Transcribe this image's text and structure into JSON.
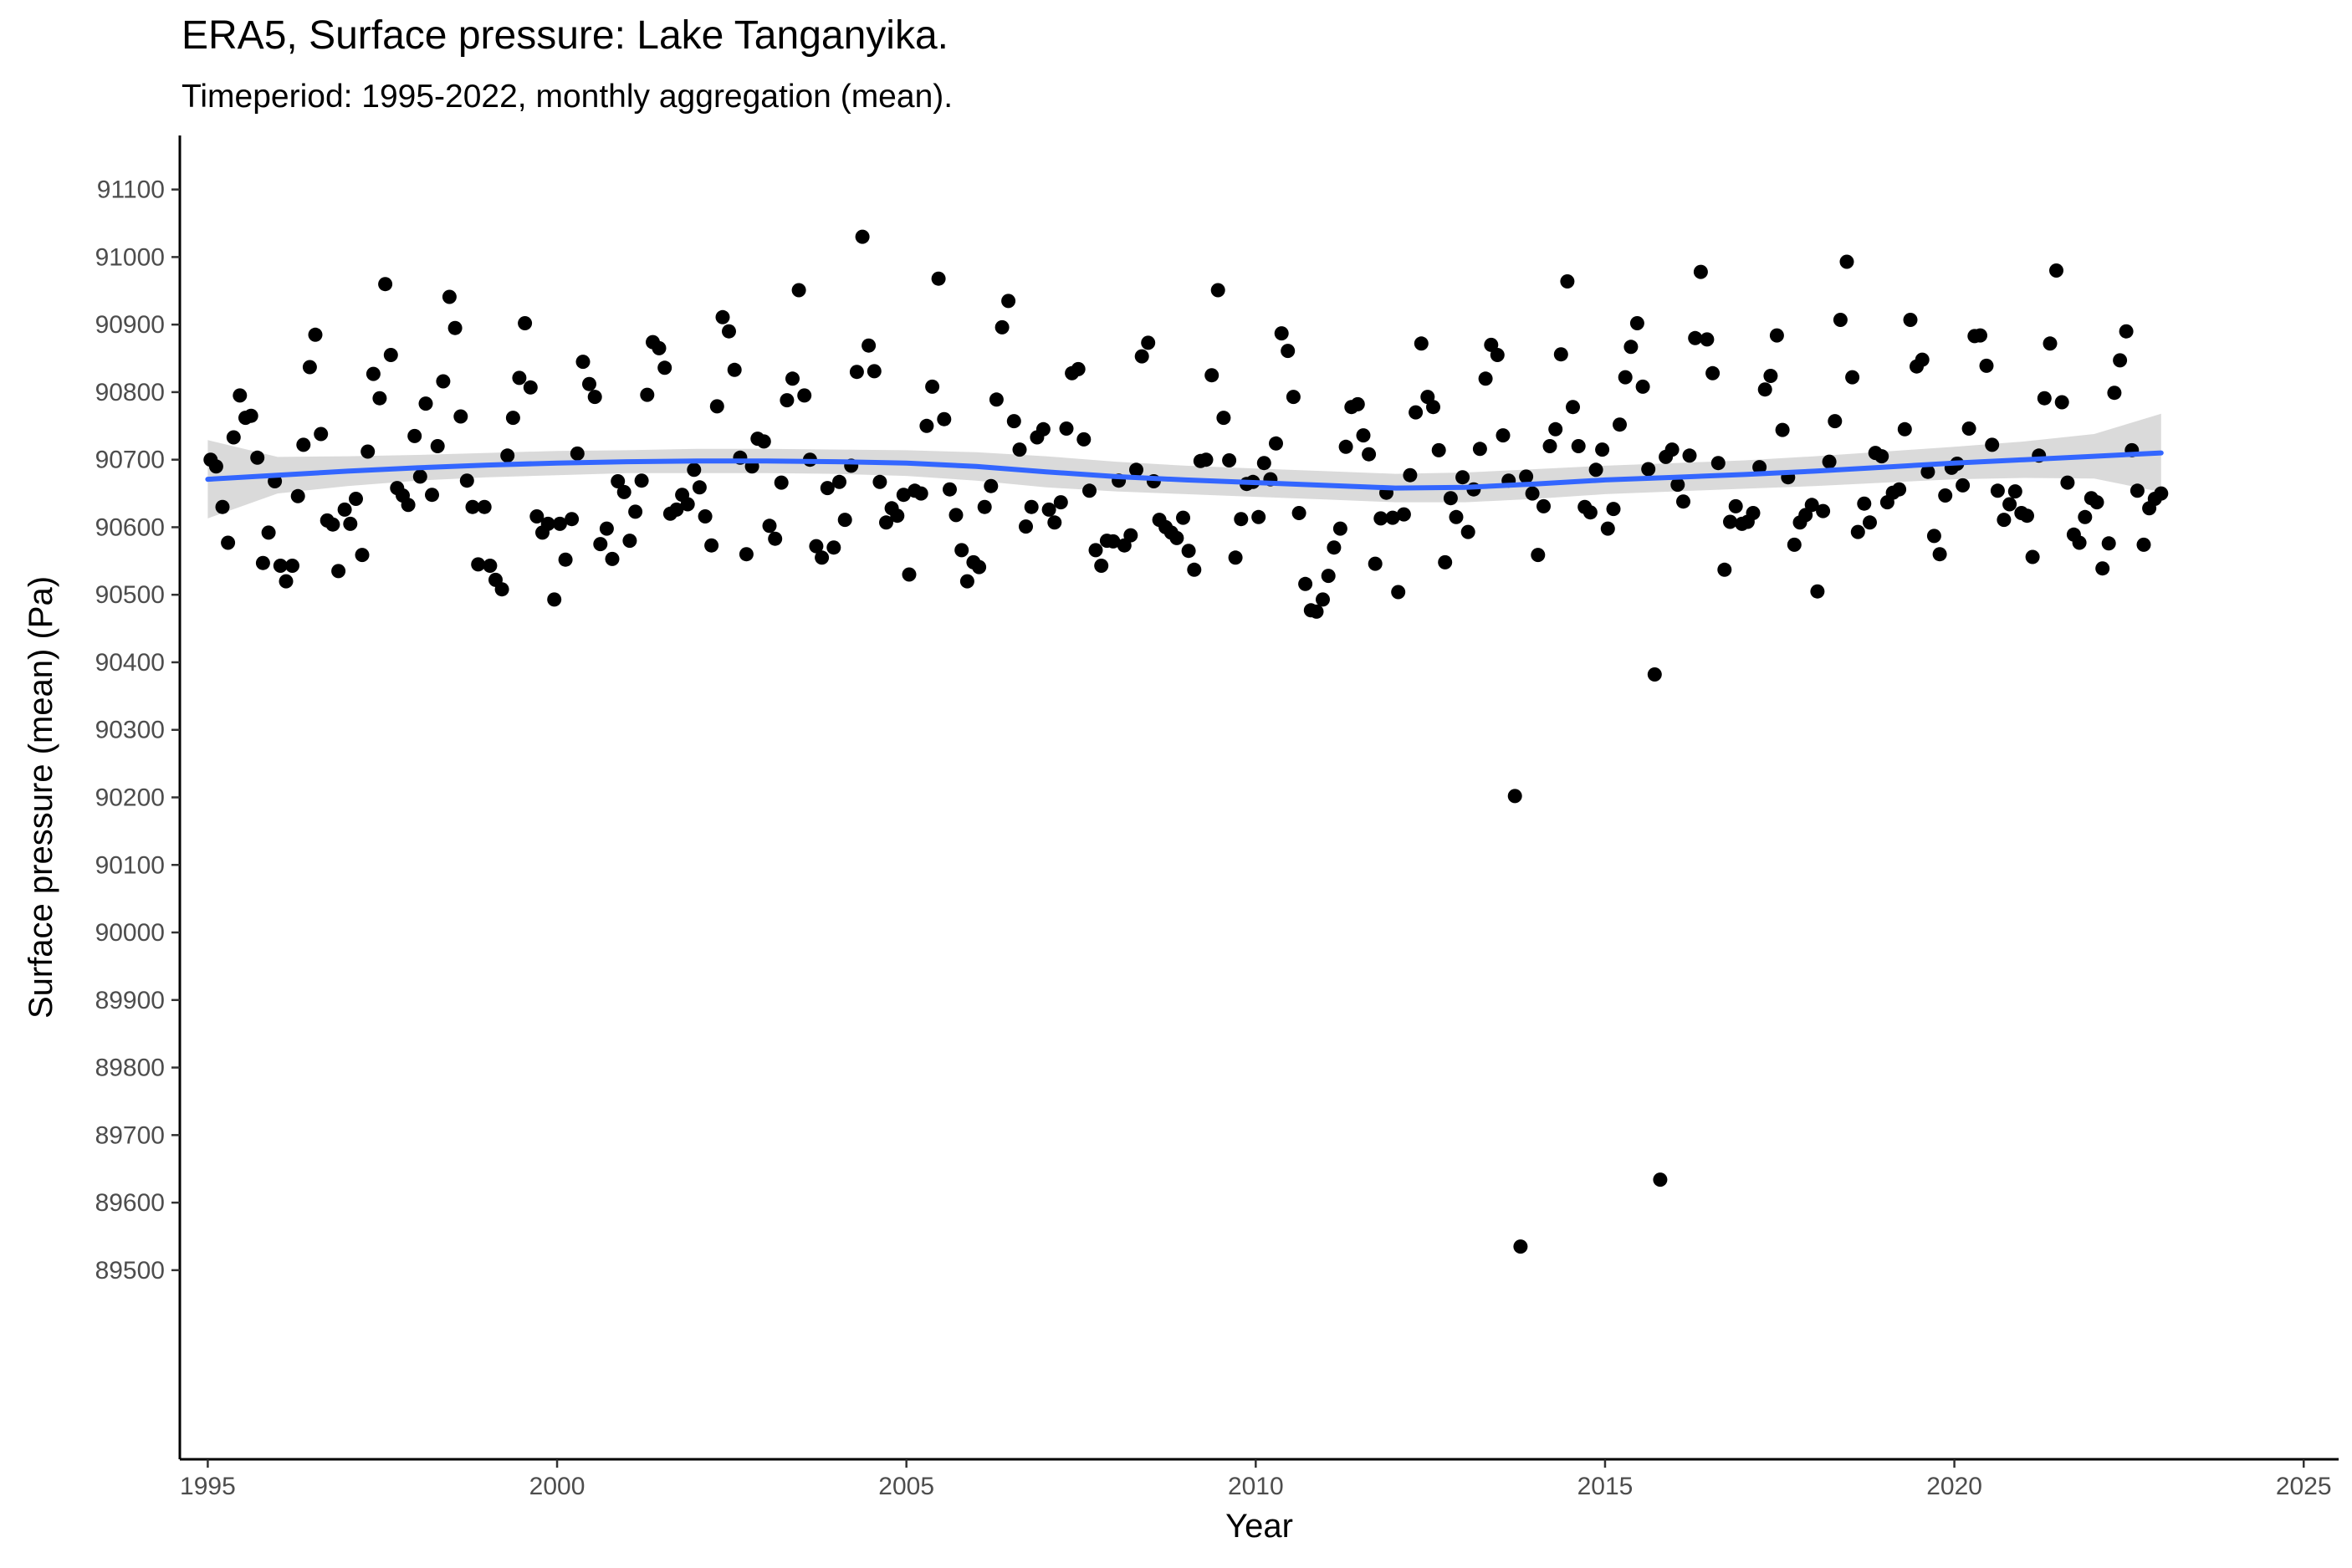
{
  "chart_data": {
    "type": "scatter",
    "title": "ERA5, Surface pressure: Lake Tanganyika.",
    "subtitle": "Timeperiod: 1995-2022, monthly aggregation (mean).",
    "xlabel": "Year",
    "ylabel": "Surface pressure (mean) (Pa)",
    "xlim": [
      1994.6,
      2025.5
    ],
    "ylim": [
      89220,
      91180
    ],
    "x_ticks": [
      1995,
      2000,
      2005,
      2010,
      2015,
      2020,
      2025
    ],
    "y_ticks": [
      89500,
      89600,
      89700,
      89800,
      89900,
      90000,
      90100,
      90200,
      90300,
      90400,
      90500,
      90600,
      90700,
      90800,
      90900,
      91000,
      91100
    ],
    "grid": false,
    "legend": "none",
    "colors": {
      "points": "#000000",
      "smooth_line": "#3366FF",
      "confidence_band": "#d3d3d3"
    },
    "series": [
      {
        "kind": "points",
        "x": [
          1995.04,
          1995.12,
          1995.21,
          1995.29,
          1995.37,
          1995.46,
          1995.54,
          1995.62,
          1995.71,
          1995.79,
          1995.87,
          1995.96,
          1996.04,
          1996.12,
          1996.21,
          1996.29,
          1996.37,
          1996.46,
          1996.54,
          1996.62,
          1996.71,
          1996.79,
          1996.87,
          1996.96,
          1997.04,
          1997.12,
          1997.21,
          1997.29,
          1997.37,
          1997.46,
          1997.54,
          1997.62,
          1997.71,
          1997.79,
          1997.87,
          1997.96,
          1998.04,
          1998.12,
          1998.21,
          1998.29,
          1998.37,
          1998.46,
          1998.54,
          1998.62,
          1998.71,
          1998.79,
          1998.87,
          1998.96,
          1999.04,
          1999.12,
          1999.21,
          1999.29,
          1999.37,
          1999.46,
          1999.54,
          1999.62,
          1999.71,
          1999.79,
          1999.87,
          1999.96,
          2000.04,
          2000.12,
          2000.21,
          2000.29,
          2000.37,
          2000.46,
          2000.54,
          2000.62,
          2000.71,
          2000.79,
          2000.87,
          2000.96,
          2001.04,
          2001.12,
          2001.21,
          2001.29,
          2001.37,
          2001.46,
          2001.54,
          2001.62,
          2001.71,
          2001.79,
          2001.87,
          2001.96,
          2002.04,
          2002.12,
          2002.21,
          2002.29,
          2002.37,
          2002.46,
          2002.54,
          2002.62,
          2002.71,
          2002.79,
          2002.87,
          2002.96,
          2003.04,
          2003.12,
          2003.21,
          2003.29,
          2003.37,
          2003.46,
          2003.54,
          2003.62,
          2003.71,
          2003.79,
          2003.87,
          2003.96,
          2004.04,
          2004.12,
          2004.21,
          2004.29,
          2004.37,
          2004.46,
          2004.54,
          2004.62,
          2004.71,
          2004.79,
          2004.87,
          2004.96,
          2005.04,
          2005.12,
          2005.21,
          2005.29,
          2005.37,
          2005.46,
          2005.54,
          2005.62,
          2005.71,
          2005.79,
          2005.87,
          2005.96,
          2006.04,
          2006.12,
          2006.21,
          2006.29,
          2006.37,
          2006.46,
          2006.54,
          2006.62,
          2006.71,
          2006.79,
          2006.87,
          2006.96,
          2007.04,
          2007.12,
          2007.21,
          2007.29,
          2007.37,
          2007.46,
          2007.54,
          2007.62,
          2007.71,
          2007.79,
          2007.87,
          2007.96,
          2008.04,
          2008.12,
          2008.21,
          2008.29,
          2008.37,
          2008.46,
          2008.54,
          2008.62,
          2008.71,
          2008.79,
          2008.87,
          2008.96,
          2009.04,
          2009.12,
          2009.21,
          2009.29,
          2009.37,
          2009.46,
          2009.54,
          2009.62,
          2009.71,
          2009.79,
          2009.87,
          2009.96,
          2010.04,
          2010.12,
          2010.21,
          2010.29,
          2010.37,
          2010.46,
          2010.54,
          2010.62,
          2010.71,
          2010.79,
          2010.87,
          2010.96,
          2011.04,
          2011.12,
          2011.21,
          2011.29,
          2011.37,
          2011.46,
          2011.54,
          2011.62,
          2011.71,
          2011.79,
          2011.87,
          2011.96,
          2012.04,
          2012.12,
          2012.21,
          2012.29,
          2012.37,
          2012.46,
          2012.54,
          2012.62,
          2012.71,
          2012.79,
          2012.87,
          2012.96,
          2013.04,
          2013.12,
          2013.21,
          2013.29,
          2013.37,
          2013.46,
          2013.54,
          2013.62,
          2013.71,
          2013.79,
          2013.87,
          2013.96,
          2014.04,
          2014.12,
          2014.21,
          2014.29,
          2014.37,
          2014.46,
          2014.54,
          2014.62,
          2014.71,
          2014.79,
          2014.87,
          2014.96,
          2015.04,
          2015.12,
          2015.21,
          2015.29,
          2015.37,
          2015.46,
          2015.54,
          2015.62,
          2015.71,
          2015.79,
          2015.87,
          2015.96,
          2016.04,
          2016.12,
          2016.21,
          2016.29,
          2016.37,
          2016.46,
          2016.54,
          2016.62,
          2016.71,
          2016.79,
          2016.87,
          2016.96,
          2017.04,
          2017.12,
          2017.21,
          2017.29,
          2017.37,
          2017.46,
          2017.54,
          2017.62,
          2017.71,
          2017.79,
          2017.87,
          2017.96,
          2018.04,
          2018.12,
          2018.21,
          2018.29,
          2018.37,
          2018.46,
          2018.54,
          2018.62,
          2018.71,
          2018.79,
          2018.87,
          2018.96,
          2019.04,
          2019.12,
          2019.21,
          2019.29,
          2019.37,
          2019.46,
          2019.54,
          2019.62,
          2019.71,
          2019.79,
          2019.87,
          2019.96,
          2020.04,
          2020.12,
          2020.21,
          2020.29,
          2020.37,
          2020.46,
          2020.54,
          2020.62,
          2020.71,
          2020.79,
          2020.87,
          2020.96,
          2021.04,
          2021.12,
          2021.21,
          2021.29,
          2021.37,
          2021.46,
          2021.54,
          2021.62,
          2021.71,
          2021.79,
          2021.87,
          2021.96,
          2022.04,
          2022.12,
          2022.21,
          2022.29,
          2022.37,
          2022.46,
          2022.54,
          2022.62,
          2022.71,
          2022.79,
          2022.87,
          2022.96
        ],
        "y": [
          90700,
          90690,
          90630,
          90577,
          90733,
          90795,
          90762,
          90765,
          90703,
          90547,
          90592,
          90668,
          90543,
          90520,
          90543,
          90646,
          90722,
          90837,
          90885,
          90738,
          90610,
          90604,
          90535,
          90626,
          90605,
          90642,
          90559,
          90712,
          90827,
          90791,
          90960,
          90855,
          90658,
          90647,
          90633,
          90735,
          90675,
          90783,
          90648,
          90720,
          90816,
          90941,
          90895,
          90764,
          90669,
          90630,
          90545,
          90630,
          90543,
          90522,
          90508,
          90706,
          90762,
          90821,
          90902,
          90807,
          90616,
          90592,
          90605,
          90493,
          90605,
          90552,
          90612,
          90709,
          90845,
          90812,
          90793,
          90575,
          90598,
          90553,
          90668,
          90652,
          90580,
          90623,
          90669,
          90796,
          90874,
          90865,
          90836,
          90620,
          90626,
          90648,
          90634,
          90685,
          90659,
          90616,
          90573,
          90779,
          90911,
          90890,
          90833,
          90703,
          90560,
          90690,
          90731,
          90727,
          90602,
          90583,
          90666,
          90788,
          90820,
          90951,
          90795,
          90700,
          90572,
          90555,
          90658,
          90570,
          90667,
          90611,
          90691,
          90830,
          91030,
          90869,
          90831,
          90667,
          90607,
          90628,
          90617,
          90648,
          90530,
          90654,
          90650,
          90750,
          90808,
          90968,
          90760,
          90656,
          90618,
          90566,
          90520,
          90548,
          90541,
          90630,
          90661,
          90789,
          90896,
          90935,
          90757,
          90715,
          90601,
          90630,
          90733,
          90745,
          90626,
          90607,
          90637,
          90746,
          90828,
          90834,
          90730,
          90654,
          90566,
          90543,
          90580,
          90579,
          90669,
          90573,
          90588,
          90685,
          90853,
          90873,
          90668,
          90611,
          90600,
          90592,
          90584,
          90614,
          90565,
          90537,
          90698,
          90700,
          90825,
          90951,
          90762,
          90699,
          90555,
          90612,
          90664,
          90667,
          90615,
          90695,
          90671,
          90724,
          90887,
          90861,
          90793,
          90621,
          90516,
          90477,
          90475,
          90493,
          90528,
          90570,
          90598,
          90719,
          90778,
          90782,
          90736,
          90708,
          90546,
          90613,
          90651,
          90614,
          90504,
          90619,
          90677,
          90770,
          90872,
          90793,
          90778,
          90714,
          90548,
          90643,
          90615,
          90674,
          90593,
          90656,
          90716,
          90820,
          90870,
          90855,
          90736,
          90669,
          90202,
          89535,
          90675,
          90650,
          90559,
          90631,
          90720,
          90745,
          90856,
          90964,
          90778,
          90720,
          90630,
          90622,
          90685,
          90715,
          90598,
          90627,
          90752,
          90822,
          90867,
          90902,
          90808,
          90686,
          90382,
          89634,
          90704,
          90715,
          90663,
          90638,
          90706,
          90880,
          90978,
          90878,
          90828,
          90695,
          90537,
          90608,
          90631,
          90605,
          90608,
          90621,
          90689,
          90804,
          90824,
          90884,
          90744,
          90674,
          90574,
          90607,
          90618,
          90633,
          90505,
          90624,
          90697,
          90757,
          90907,
          90993,
          90822,
          90593,
          90635,
          90607,
          90710,
          90705,
          90637,
          90651,
          90656,
          90745,
          90907,
          90838,
          90848,
          90682,
          90587,
          90560,
          90647,
          90688,
          90694,
          90662,
          90746,
          90883,
          90884,
          90839,
          90722,
          90654,
          90611,
          90634,
          90653,
          90621,
          90617,
          90556,
          90706,
          90791,
          90872,
          90980,
          90785,
          90666,
          90589,
          90577,
          90615,
          90643,
          90637,
          90539,
          90576,
          90799,
          90847,
          90890,
          90714,
          90654,
          90574,
          90628,
          90642,
          90650
        ]
      },
      {
        "kind": "smooth",
        "x": [
          1995,
          1996,
          1997,
          1998,
          1999,
          2000,
          2001,
          2002,
          2003,
          2004,
          2005,
          2006,
          2007,
          2008,
          2009,
          2010,
          2011,
          2012,
          2013,
          2014,
          2015,
          2016,
          2017,
          2018,
          2019,
          2020,
          2021,
          2022,
          2022.96
        ],
        "y": [
          90671,
          90677,
          90683,
          90688,
          90692,
          90695,
          90697,
          90698,
          90698,
          90697,
          90695,
          90690,
          90682,
          90675,
          90670,
          90666,
          90662,
          90658,
          90659,
          90664,
          90670,
          90674,
          90678,
          90683,
          90689,
          90695,
          90700,
          90705,
          90710
        ],
        "lower": [
          90613,
          90650,
          90661,
          90669,
          90674,
          90677,
          90680,
          90680,
          90680,
          90679,
          90676,
          90669,
          90659,
          90653,
          90649,
          90645,
          90641,
          90637,
          90637,
          90642,
          90649,
          90653,
          90657,
          90661,
          90666,
          90671,
          90673,
          90672,
          90652
        ],
        "upper": [
          90729,
          90704,
          90705,
          90707,
          90710,
          90713,
          90714,
          90716,
          90716,
          90715,
          90714,
          90711,
          90705,
          90697,
          90691,
          90687,
          90683,
          90679,
          90681,
          90686,
          90691,
          90695,
          90699,
          90705,
          90712,
          90719,
          90727,
          90738,
          90768
        ]
      }
    ]
  }
}
